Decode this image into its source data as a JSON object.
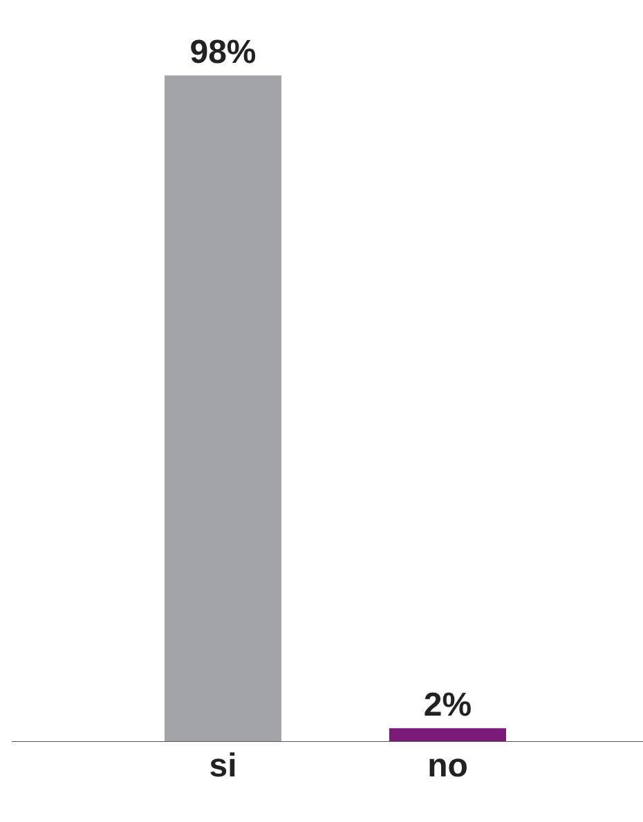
{
  "chart_data": {
    "type": "bar",
    "categories": [
      "si",
      "no"
    ],
    "values": [
      98,
      2
    ],
    "colors": [
      "#a3a4a8",
      "#7b1a78"
    ],
    "value_labels": [
      "98%",
      "2%"
    ],
    "tick_labels": "x"
  }
}
